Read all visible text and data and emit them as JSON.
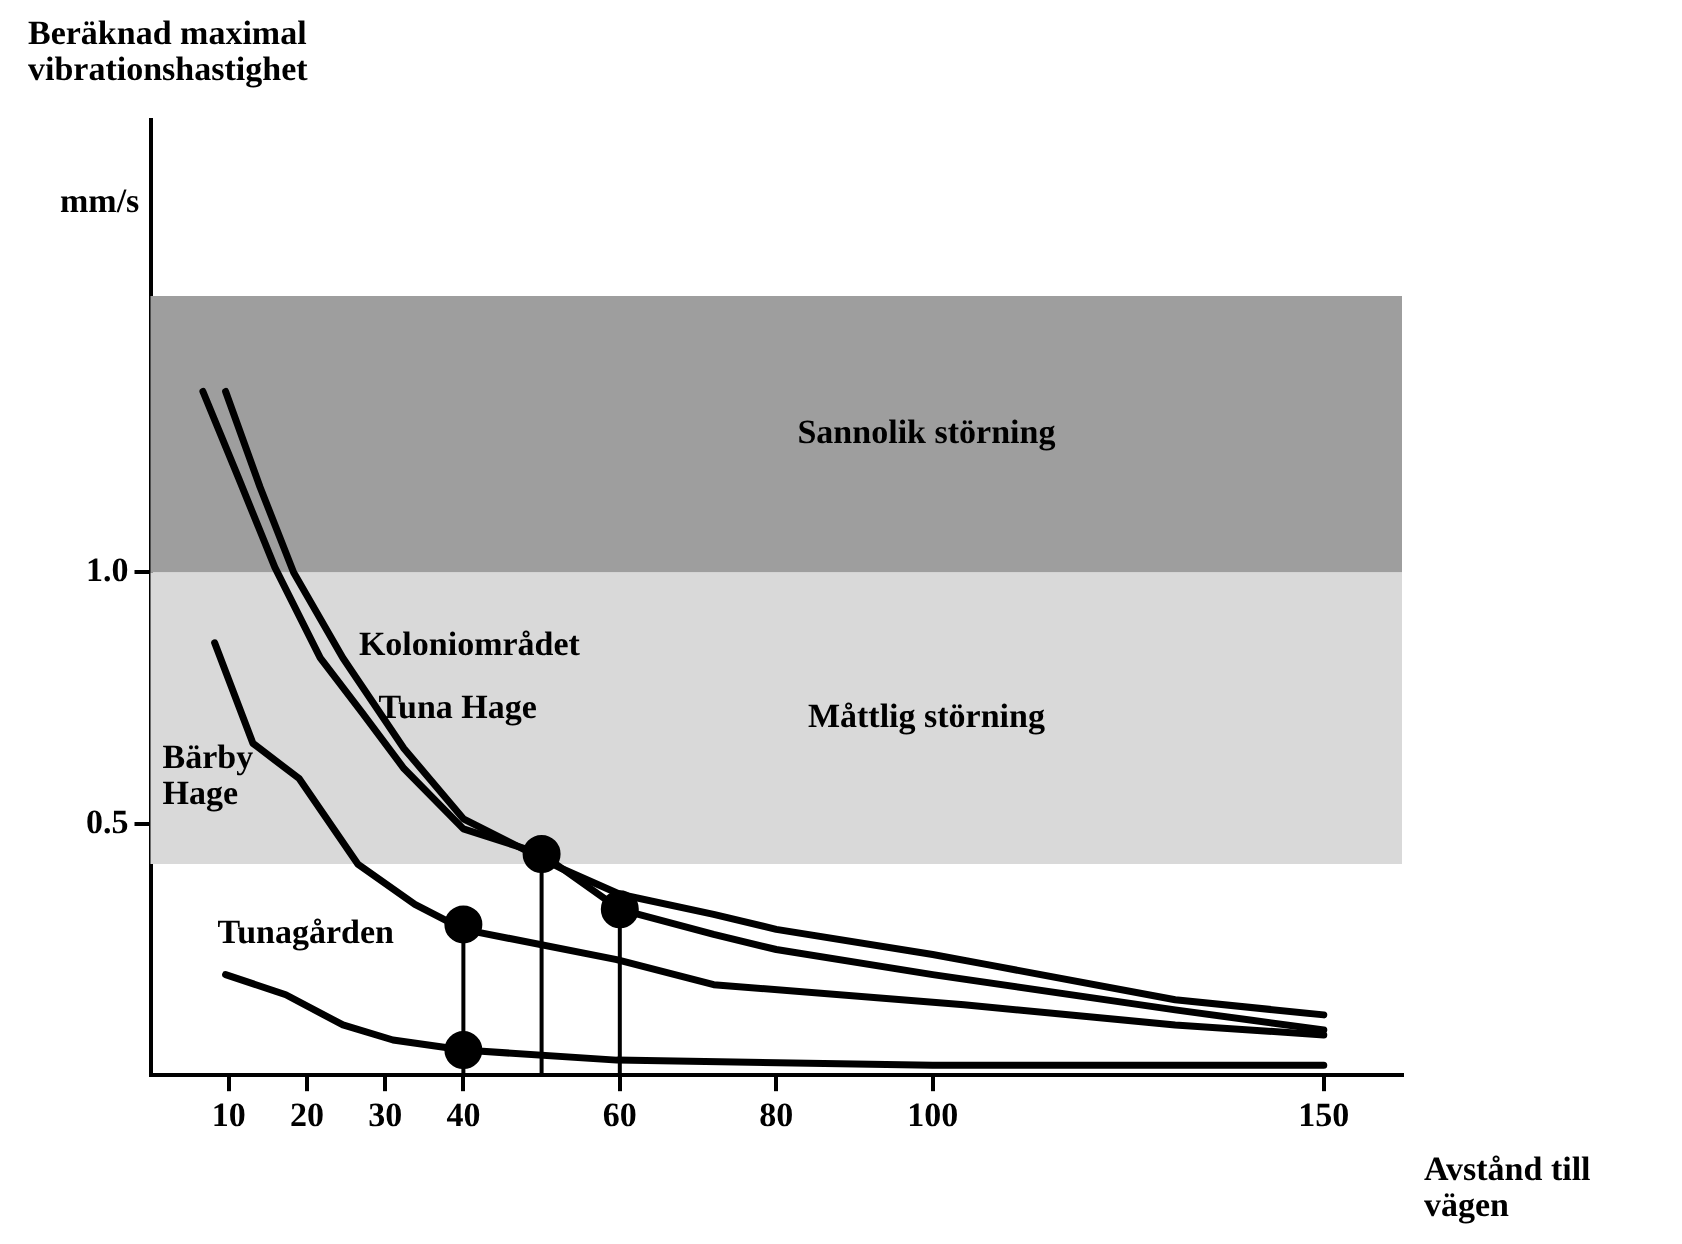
{
  "chart_data": {
    "type": "line",
    "ylabel": "Beräknad maximal vibrationshastighet",
    "xlabel": "Avstånd till vägen",
    "annotations": [
      "mm/s"
    ],
    "xlim": [
      0,
      160
    ],
    "xticks": [
      10,
      20,
      30,
      40,
      60,
      80,
      100,
      150
    ],
    "ylim": [
      0,
      1.9
    ],
    "yticks": [
      0.5,
      {
        "value": 1,
        "label": "1.0"
      }
    ],
    "grid": false,
    "legend": false,
    "marker": "none",
    "line_style": "solid",
    "bands": [
      {
        "axis": "y",
        "from": 1.0,
        "to": 1.55,
        "label": "Sannolik störning",
        "color": "#9e9e9e"
      },
      {
        "axis": "y",
        "from": 0.42,
        "to": 1.0,
        "label": "Måttlig störning",
        "color": "#d9d9d9"
      }
    ],
    "series": [
      {
        "name": "Koloniområdet",
        "color": "#000000",
        "x": [
          9.6,
          14,
          18.3,
          24.6,
          32.4,
          40,
          52.7,
          60,
          72,
          80,
          100,
          107,
          131,
          150
        ],
        "values": [
          1.36,
          1.17,
          1.0,
          0.83,
          0.65,
          0.51,
          0.41,
          0.36,
          0.32,
          0.29,
          0.24,
          0.22,
          0.15,
          0.12
        ]
      },
      {
        "name": "Tuna Hage",
        "color": "#000000",
        "x": [
          6.7,
          11.2,
          15.9,
          21.7,
          27.1,
          32.4,
          40,
          50,
          60,
          72,
          80,
          100,
          131,
          150
        ],
        "values": [
          1.36,
          1.19,
          1.01,
          0.83,
          0.72,
          0.61,
          0.49,
          0.44,
          0.33,
          0.28,
          0.25,
          0.2,
          0.13,
          0.09
        ]
      },
      {
        "name": "Bärby Hage",
        "color": "#000000",
        "x": [
          8.2,
          13.1,
          19,
          26.5,
          33.8,
          40,
          59.6,
          72,
          104,
          131,
          150
        ],
        "values": [
          0.86,
          0.66,
          0.59,
          0.42,
          0.34,
          0.29,
          0.23,
          0.18,
          0.14,
          0.1,
          0.08
        ]
      },
      {
        "name": "Tunagården",
        "color": "#000000",
        "x": [
          9.6,
          17.3,
          24.6,
          31,
          40,
          59.6,
          100,
          150
        ],
        "values": [
          0.2,
          0.16,
          0.1,
          0.07,
          0.05,
          0.03,
          0.02,
          0.02
        ]
      },
      {
        "color": "#000000",
        "x": [
          40,
          40
        ],
        "values": [
          0,
          0.3
        ]
      },
      {
        "color": "#000000",
        "x": [
          50,
          50
        ],
        "values": [
          0,
          0.44
        ]
      },
      {
        "color": "#000000",
        "x": [
          60,
          60
        ],
        "values": [
          0,
          0.33
        ]
      },
      {
        "type": "scatter",
        "marker": "circle",
        "color": "#000000",
        "x": [
          40,
          40,
          50,
          60
        ],
        "values": [
          0.3,
          0.05,
          0.44,
          0.33
        ]
      }
    ]
  }
}
